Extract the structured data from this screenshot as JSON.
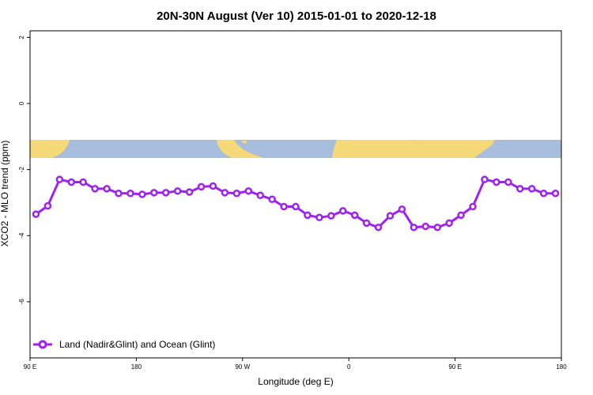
{
  "chart_data": {
    "type": "line",
    "title": "20N-30N August (Ver 10)   2015-01-01 to 2020-12-18",
    "xlabel": "Longitude (deg E)",
    "ylabel": "XCO2 - MLO trend (ppm)",
    "x_ticks": [
      {
        "value": 90,
        "label": "90 E"
      },
      {
        "value": 180,
        "label": "180"
      },
      {
        "value": 270,
        "label": "90 W"
      },
      {
        "value": 360,
        "label": "0"
      },
      {
        "value": 450,
        "label": "90 E"
      },
      {
        "value": 540,
        "label": "180"
      }
    ],
    "y_ticks": [
      {
        "value": 2,
        "label": "2"
      },
      {
        "value": 0,
        "label": "0"
      },
      {
        "value": -2,
        "label": "-2"
      },
      {
        "value": -4,
        "label": "-4"
      },
      {
        "value": -6,
        "label": "-6"
      }
    ],
    "xlim": [
      90,
      540
    ],
    "ylim": [
      -7.7,
      2.2
    ],
    "series": [
      {
        "name": "Land (Nadir&Glint) and Ocean (Glint)",
        "color": "#a020f0",
        "x": [
          95,
          105,
          115,
          125,
          135,
          145,
          155,
          165,
          175,
          185,
          195,
          205,
          215,
          225,
          235,
          245,
          255,
          265,
          275,
          285,
          295,
          305,
          315,
          325,
          335,
          345,
          355,
          365,
          375,
          385,
          395,
          405,
          415,
          425,
          435,
          445,
          455,
          465,
          475,
          485,
          495,
          505,
          515,
          525,
          535
        ],
        "y": [
          -3.35,
          -3.1,
          -2.3,
          -2.38,
          -2.38,
          -2.58,
          -2.58,
          -2.72,
          -2.72,
          -2.75,
          -2.7,
          -2.7,
          -2.65,
          -2.68,
          -2.52,
          -2.5,
          -2.7,
          -2.72,
          -2.65,
          -2.78,
          -2.9,
          -3.12,
          -3.12,
          -3.38,
          -3.45,
          -3.4,
          -3.25,
          -3.38,
          -3.62,
          -3.75,
          -3.4,
          -3.2,
          -3.75,
          -3.72,
          -3.75,
          -3.62,
          -3.38,
          -3.12,
          -2.3,
          -2.38,
          -2.38,
          -2.58,
          -2.58,
          -2.72,
          -2.72
        ]
      }
    ],
    "grid": false,
    "legend": "bottom-left",
    "map_strip": {
      "y_range": [
        -1.1,
        -1.65
      ],
      "ocean_color": "#a6bddb",
      "land_color": "#f5d877"
    }
  }
}
